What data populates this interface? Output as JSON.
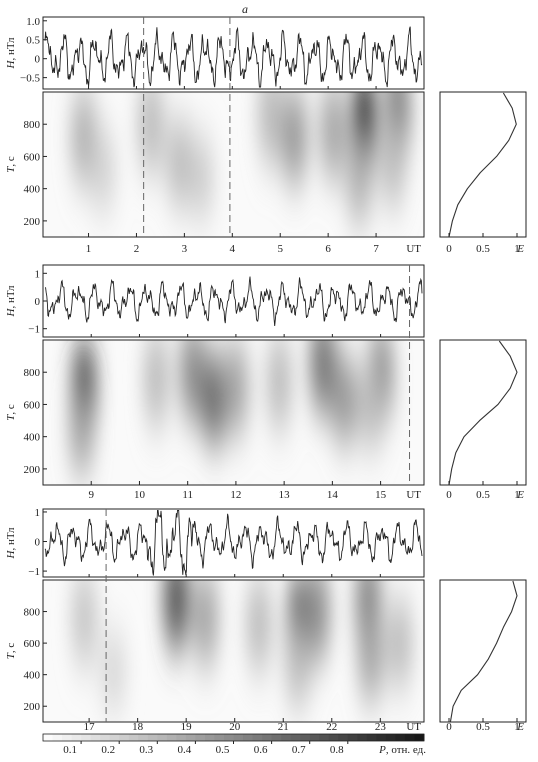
{
  "figure_label": "a",
  "chart_data": [
    {
      "id": "p1",
      "type": "heatmap",
      "trace": {
        "ylabel_var": "H",
        "ylabel_unit": ", нТл",
        "yticks": [
          "1.0",
          "0.5",
          "0",
          "−0.5"
        ],
        "ytick_values": [
          1.0,
          0.5,
          0,
          -0.5
        ],
        "ylim": [
          -0.8,
          1.1
        ],
        "dashed_ut": [
          2.15,
          3.95
        ]
      },
      "wavelet": {
        "ylabel_var": "T",
        "ylabel_unit": ", с",
        "yticks": [
          "800",
          "600",
          "400",
          "200"
        ],
        "ytick_values": [
          800,
          600,
          400,
          200
        ],
        "ylim": [
          100,
          1000
        ],
        "blobs": [
          {
            "ut": 0.9,
            "t": 720,
            "p": 0.35
          },
          {
            "ut": 1.3,
            "t": 520,
            "p": 0.2
          },
          {
            "ut": 2.3,
            "t": 800,
            "p": 0.3
          },
          {
            "ut": 2.9,
            "t": 560,
            "p": 0.3
          },
          {
            "ut": 3.35,
            "t": 470,
            "p": 0.22
          },
          {
            "ut": 4.8,
            "t": 860,
            "p": 0.3
          },
          {
            "ut": 5.3,
            "t": 720,
            "p": 0.45
          },
          {
            "ut": 6.1,
            "t": 760,
            "p": 0.4
          },
          {
            "ut": 6.75,
            "t": 820,
            "p": 0.9
          },
          {
            "ut": 6.65,
            "t": 440,
            "p": 0.35
          },
          {
            "ut": 7.45,
            "t": 880,
            "p": 0.6
          },
          {
            "ut": 7.35,
            "t": 560,
            "p": 0.3
          }
        ]
      },
      "xticks": [
        "1",
        "2",
        "3",
        "4",
        "5",
        "6",
        "7"
      ],
      "xtick_values": [
        1,
        2,
        3,
        4,
        5,
        6,
        7
      ],
      "xlim": [
        0.05,
        8.0
      ],
      "xlabel": "UT",
      "trace_freq": 24,
      "energy": {
        "xticks": [
          "0",
          "0.5",
          "1"
        ],
        "xtick_values": [
          0,
          0.5,
          1
        ],
        "xlabel": "E",
        "t": [
          100,
          200,
          300,
          400,
          500,
          600,
          700,
          800,
          900,
          1000
        ],
        "e": [
          0.0,
          0.05,
          0.13,
          0.27,
          0.46,
          0.7,
          0.88,
          0.99,
          0.93,
          0.8
        ]
      }
    },
    {
      "id": "p2",
      "type": "heatmap",
      "trace": {
        "ylabel_var": "H",
        "ylabel_unit": ", нТл",
        "yticks": [
          "1",
          "0",
          "−1"
        ],
        "ytick_values": [
          1,
          0,
          -1
        ],
        "ylim": [
          -1.3,
          1.3
        ],
        "dashed_ut": [
          15.6
        ]
      },
      "wavelet": {
        "ylabel_var": "T",
        "ylabel_unit": ", с",
        "yticks": [
          "800",
          "600",
          "400",
          "200"
        ],
        "ytick_values": [
          800,
          600,
          400,
          200
        ],
        "ylim": [
          100,
          1000
        ],
        "blobs": [
          {
            "ut": 8.85,
            "t": 680,
            "p": 0.95
          },
          {
            "ut": 8.8,
            "t": 420,
            "p": 0.4
          },
          {
            "ut": 10.35,
            "t": 760,
            "p": 0.3
          },
          {
            "ut": 11.1,
            "t": 800,
            "p": 0.5
          },
          {
            "ut": 11.55,
            "t": 630,
            "p": 0.65
          },
          {
            "ut": 12.0,
            "t": 700,
            "p": 0.4
          },
          {
            "ut": 12.9,
            "t": 740,
            "p": 0.3
          },
          {
            "ut": 13.8,
            "t": 860,
            "p": 0.6
          },
          {
            "ut": 14.25,
            "t": 630,
            "p": 0.45
          },
          {
            "ut": 15.0,
            "t": 780,
            "p": 0.55
          },
          {
            "ut": 14.8,
            "t": 600,
            "p": 0.3
          }
        ]
      },
      "xticks": [
        "9",
        "10",
        "11",
        "12",
        "13",
        "14",
        "15"
      ],
      "xtick_values": [
        9,
        10,
        11,
        12,
        13,
        14,
        15
      ],
      "xlim": [
        8.0,
        15.9
      ],
      "xlabel": "UT",
      "trace_freq": 22,
      "energy": {
        "xticks": [
          "0",
          "0.5",
          "1"
        ],
        "xtick_values": [
          0,
          0.5,
          1
        ],
        "xlabel": "E",
        "t": [
          100,
          200,
          300,
          400,
          500,
          600,
          700,
          800,
          900,
          1000
        ],
        "e": [
          0.0,
          0.04,
          0.1,
          0.22,
          0.45,
          0.72,
          0.9,
          1.0,
          0.9,
          0.74
        ]
      }
    },
    {
      "id": "p3",
      "type": "heatmap",
      "trace": {
        "ylabel_var": "H",
        "ylabel_unit": ", нТл",
        "yticks": [
          "1",
          "0",
          "−1"
        ],
        "ytick_values": [
          1,
          0,
          -1
        ],
        "ylim": [
          -1.2,
          1.1
        ],
        "dashed_ut": [
          17.35
        ]
      },
      "wavelet": {
        "ylabel_var": "T",
        "ylabel_unit": ", с",
        "yticks": [
          "800",
          "600",
          "400",
          "200"
        ],
        "ytick_values": [
          800,
          600,
          400,
          200
        ],
        "ylim": [
          100,
          1000
        ],
        "blobs": [
          {
            "ut": 16.9,
            "t": 760,
            "p": 0.25
          },
          {
            "ut": 17.5,
            "t": 420,
            "p": 0.18
          },
          {
            "ut": 18.8,
            "t": 880,
            "p": 0.75
          },
          {
            "ut": 19.4,
            "t": 760,
            "p": 0.4
          },
          {
            "ut": 20.5,
            "t": 720,
            "p": 0.3
          },
          {
            "ut": 21.35,
            "t": 720,
            "p": 0.95
          },
          {
            "ut": 21.7,
            "t": 800,
            "p": 0.5
          },
          {
            "ut": 21.3,
            "t": 460,
            "p": 0.3
          },
          {
            "ut": 22.75,
            "t": 860,
            "p": 0.55
          },
          {
            "ut": 22.8,
            "t": 500,
            "p": 0.4
          },
          {
            "ut": 23.4,
            "t": 600,
            "p": 0.3
          }
        ]
      },
      "xticks": [
        "17",
        "18",
        "19",
        "20",
        "21",
        "22",
        "23"
      ],
      "xtick_values": [
        17,
        18,
        19,
        20,
        21,
        22,
        23
      ],
      "xlim": [
        16.05,
        23.9
      ],
      "xlabel": "UT",
      "trace_freq": 22,
      "energy": {
        "xticks": [
          "0",
          "0.5",
          "1"
        ],
        "xtick_values": [
          0,
          0.5,
          1
        ],
        "xlabel": "E",
        "t": [
          100,
          200,
          300,
          400,
          500,
          600,
          700,
          800,
          900,
          1000
        ],
        "e": [
          0.02,
          0.06,
          0.18,
          0.42,
          0.58,
          0.7,
          0.8,
          0.92,
          1.0,
          0.94
        ]
      }
    }
  ],
  "colorbar": {
    "ticks": [
      "0.1",
      "0.2",
      "0.3",
      "0.4",
      "0.5",
      "0.6",
      "0.7",
      "0.8"
    ],
    "tick_values": [
      0.1,
      0.2,
      0.3,
      0.4,
      0.5,
      0.6,
      0.7,
      0.8
    ],
    "label_var": "P",
    "label_unit": ", отн. ед.",
    "range": [
      0,
      1
    ]
  }
}
